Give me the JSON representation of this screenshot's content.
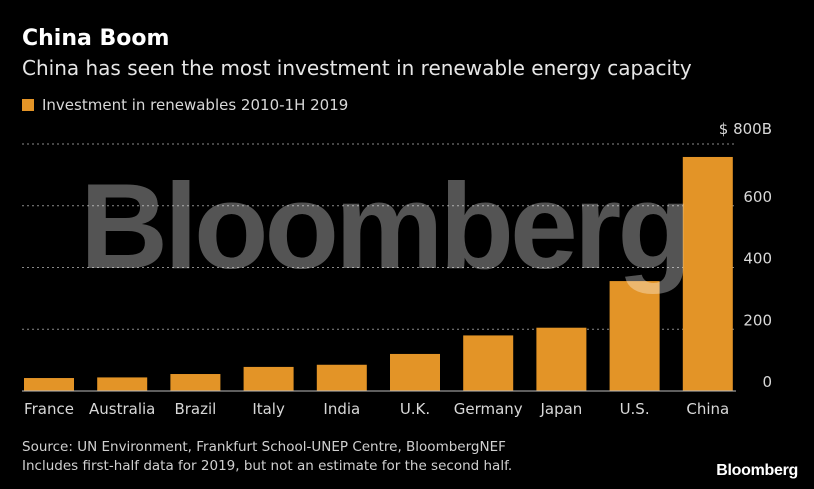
{
  "title": "China Boom",
  "subtitle": "China has seen the most investment in renewable energy capacity",
  "legend": {
    "label": "Investment in renewables 2010-1H 2019"
  },
  "colors": {
    "bar": "#E39427",
    "grid": "#8a8a8a",
    "background": "#000000"
  },
  "chart_data": {
    "type": "bar",
    "categories": [
      "France",
      "Australia",
      "Brazil",
      "Italy",
      "India",
      "U.K.",
      "Germany",
      "Japan",
      "U.S.",
      "China"
    ],
    "series": [
      {
        "name": "Investment in renewables 2010-1H 2019",
        "values": [
          42,
          44,
          55,
          78,
          85,
          120,
          180,
          205,
          356,
          758
        ]
      }
    ],
    "ylim": [
      0,
      800
    ],
    "yticks": [
      0,
      200,
      400,
      600,
      800
    ],
    "ytick_labels": [
      "0",
      "200",
      "400",
      "600",
      "$ 800B"
    ],
    "grid": true,
    "yaxis_position": "right",
    "xlabel": "",
    "ylabel": ""
  },
  "footer": {
    "source": "Source: UN Environment, Frankfurt School-UNEP Centre, BloombergNEF",
    "note": "Includes first-half data for 2019, but not an estimate for the second half."
  },
  "watermark": "Bloomberg",
  "brand": "Bloomberg"
}
